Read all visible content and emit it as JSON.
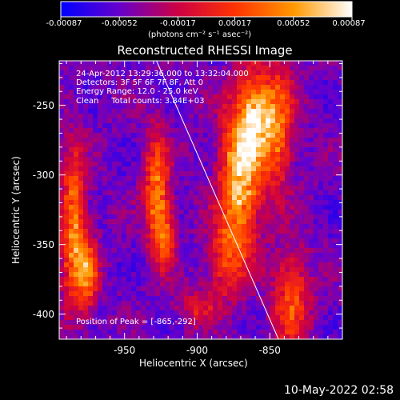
{
  "chart_data": {
    "type": "heatmap",
    "title": "Reconstructed RHESSI Image",
    "xlabel": "Heliocentric X (arcsec)",
    "ylabel": "Heliocentric Y (arcsec)",
    "xlim": [
      -995,
      -800
    ],
    "ylim": [
      -418,
      -218
    ],
    "x_ticks": [
      -950,
      -900,
      -850
    ],
    "x_tick_labels": [
      "-950",
      "-900",
      "-850"
    ],
    "y_ticks": [
      -250,
      -300,
      -350,
      -400
    ],
    "y_tick_labels": [
      "-250",
      "-300",
      "-350",
      "-400"
    ],
    "colorbar": {
      "min": -0.00087,
      "max": 0.00087,
      "ticks": [
        -0.00087,
        -0.00052,
        -0.00017,
        0.00017,
        0.00052,
        0.00087
      ],
      "tick_labels": [
        "-0.00087",
        "-0.00052",
        "-0.00017",
        "0.00017",
        "0.00052",
        "0.00087"
      ],
      "units": "(photons cm⁻² s⁻¹ asec⁻²)",
      "colors": [
        "#0000ff",
        "#6600cc",
        "#cc0044",
        "#ff3300",
        "#ff9900",
        "#ffffff"
      ]
    },
    "info_lines": [
      "24-Apr-2012 13:29:36.000 to 13:32:04.000",
      "Detectors: 3F 5F 6F 7F 8F, Att 0",
      "Energy Range: 12.0 - 25.0 keV",
      "Clean     Total counts: 3.84E+03"
    ],
    "peak_label": "Position of Peak = [-865,-292]",
    "peak": [
      -865,
      -292
    ],
    "limb_line": [
      [
        -928,
        -218
      ],
      [
        -844,
        -418
      ]
    ],
    "emission_features": [
      {
        "x": -870,
        "y": -300,
        "sx": 10,
        "sy": 35,
        "amp": 1.0
      },
      {
        "x": -860,
        "y": -255,
        "sx": 8,
        "sy": 22,
        "amp": 0.75
      },
      {
        "x": -845,
        "y": -265,
        "sx": 8,
        "sy": 30,
        "amp": 0.7
      },
      {
        "x": -835,
        "y": -390,
        "sx": 9,
        "sy": 25,
        "amp": 0.6
      },
      {
        "x": -928,
        "y": -310,
        "sx": 6,
        "sy": 28,
        "amp": 0.75
      },
      {
        "x": -922,
        "y": -345,
        "sx": 5,
        "sy": 15,
        "amp": 0.6
      },
      {
        "x": -985,
        "y": -340,
        "sx": 6,
        "sy": 40,
        "amp": 0.8
      },
      {
        "x": -975,
        "y": -370,
        "sx": 5,
        "sy": 18,
        "amp": 0.65
      },
      {
        "x": -880,
        "y": -360,
        "sx": 9,
        "sy": 20,
        "amp": 0.5
      },
      {
        "x": -900,
        "y": -395,
        "sx": 10,
        "sy": 10,
        "amp": 0.35
      }
    ]
  },
  "timestamp": "10-May-2022 02:58"
}
